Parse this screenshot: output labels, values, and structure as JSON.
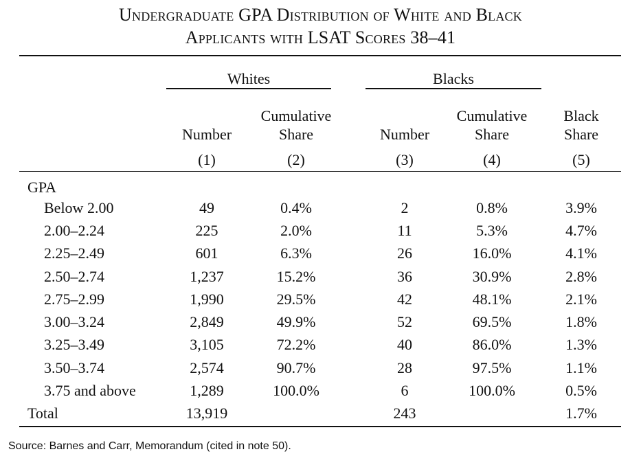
{
  "title": {
    "line1": "Undergraduate GPA Distribution of White and Black",
    "line2": "Applicants with LSAT Scores 38–41"
  },
  "groups": {
    "whites": "Whites",
    "blacks": "Blacks"
  },
  "columns": [
    {
      "label_top": "",
      "label_bottom": "Number",
      "index": "(1)"
    },
    {
      "label_top": "Cumulative",
      "label_bottom": "Share",
      "index": "(2)"
    },
    {
      "label_top": "",
      "label_bottom": "Number",
      "index": "(3)"
    },
    {
      "label_top": "Cumulative",
      "label_bottom": "Share",
      "index": "(4)"
    },
    {
      "label_top": "Black",
      "label_bottom": "Share",
      "index": "(5)"
    }
  ],
  "row_group_label": "GPA",
  "rows": [
    {
      "label": "Below 2.00",
      "values": [
        "49",
        "0.4%",
        "2",
        "0.8%",
        "3.9%"
      ]
    },
    {
      "label": "2.00–2.24",
      "values": [
        "225",
        "2.0%",
        "11",
        "5.3%",
        "4.7%"
      ]
    },
    {
      "label": "2.25–2.49",
      "values": [
        "601",
        "6.3%",
        "26",
        "16.0%",
        "4.1%"
      ]
    },
    {
      "label": "2.50–2.74",
      "values": [
        "1,237",
        "15.2%",
        "36",
        "30.9%",
        "2.8%"
      ]
    },
    {
      "label": "2.75–2.99",
      "values": [
        "1,990",
        "29.5%",
        "42",
        "48.1%",
        "2.1%"
      ]
    },
    {
      "label": "3.00–3.24",
      "values": [
        "2,849",
        "49.9%",
        "52",
        "69.5%",
        "1.8%"
      ]
    },
    {
      "label": "3.25–3.49",
      "values": [
        "3,105",
        "72.2%",
        "40",
        "86.0%",
        "1.3%"
      ]
    },
    {
      "label": "3.50–3.74",
      "values": [
        "2,574",
        "90.7%",
        "28",
        "97.5%",
        "1.1%"
      ]
    },
    {
      "label": "3.75 and above",
      "values": [
        "1,289",
        "100.0%",
        "6",
        "100.0%",
        "0.5%"
      ]
    }
  ],
  "total": {
    "label": "Total",
    "values": [
      "13,919",
      "",
      "243",
      "",
      "1.7%"
    ]
  },
  "source": "Source: Barnes and Carr, Memorandum (cited in note 50)."
}
